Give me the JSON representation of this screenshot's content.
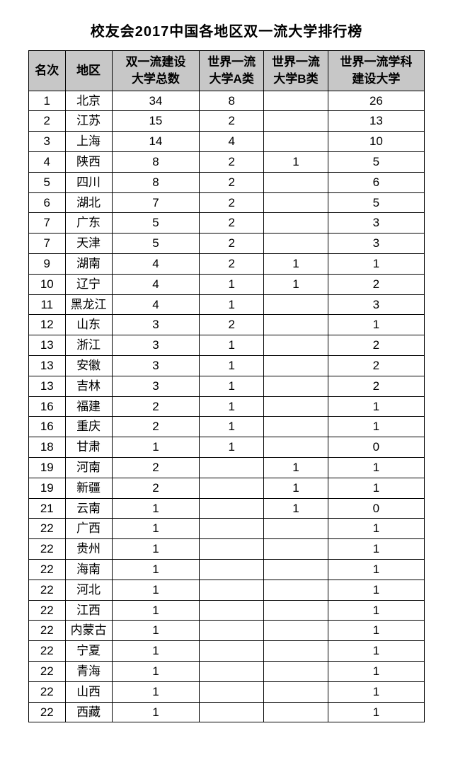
{
  "title": "校友会2017中国各地区双一流大学排行榜",
  "columns": {
    "rank": "名次",
    "region": "地区",
    "total_line1": "双一流建设",
    "total_line2": "大学总数",
    "a_line1": "世界一流",
    "a_line2": "大学A类",
    "b_line1": "世界一流",
    "b_line2": "大学B类",
    "disc_line1": "世界一流学科",
    "disc_line2": "建设大学"
  },
  "rows": [
    {
      "rank": "1",
      "region": "北京",
      "total": "34",
      "a": "8",
      "b": "",
      "disc": "26"
    },
    {
      "rank": "2",
      "region": "江苏",
      "total": "15",
      "a": "2",
      "b": "",
      "disc": "13"
    },
    {
      "rank": "3",
      "region": "上海",
      "total": "14",
      "a": "4",
      "b": "",
      "disc": "10"
    },
    {
      "rank": "4",
      "region": "陕西",
      "total": "8",
      "a": "2",
      "b": "1",
      "disc": "5"
    },
    {
      "rank": "5",
      "region": "四川",
      "total": "8",
      "a": "2",
      "b": "",
      "disc": "6"
    },
    {
      "rank": "6",
      "region": "湖北",
      "total": "7",
      "a": "2",
      "b": "",
      "disc": "5"
    },
    {
      "rank": "7",
      "region": "广东",
      "total": "5",
      "a": "2",
      "b": "",
      "disc": "3"
    },
    {
      "rank": "7",
      "region": "天津",
      "total": "5",
      "a": "2",
      "b": "",
      "disc": "3"
    },
    {
      "rank": "9",
      "region": "湖南",
      "total": "4",
      "a": "2",
      "b": "1",
      "disc": "1"
    },
    {
      "rank": "10",
      "region": "辽宁",
      "total": "4",
      "a": "1",
      "b": "1",
      "disc": "2"
    },
    {
      "rank": "11",
      "region": "黑龙江",
      "total": "4",
      "a": "1",
      "b": "",
      "disc": "3"
    },
    {
      "rank": "12",
      "region": "山东",
      "total": "3",
      "a": "2",
      "b": "",
      "disc": "1"
    },
    {
      "rank": "13",
      "region": "浙江",
      "total": "3",
      "a": "1",
      "b": "",
      "disc": "2"
    },
    {
      "rank": "13",
      "region": "安徽",
      "total": "3",
      "a": "1",
      "b": "",
      "disc": "2"
    },
    {
      "rank": "13",
      "region": "吉林",
      "total": "3",
      "a": "1",
      "b": "",
      "disc": "2"
    },
    {
      "rank": "16",
      "region": "福建",
      "total": "2",
      "a": "1",
      "b": "",
      "disc": "1"
    },
    {
      "rank": "16",
      "region": "重庆",
      "total": "2",
      "a": "1",
      "b": "",
      "disc": "1"
    },
    {
      "rank": "18",
      "region": "甘肃",
      "total": "1",
      "a": "1",
      "b": "",
      "disc": "0"
    },
    {
      "rank": "19",
      "region": "河南",
      "total": "2",
      "a": "",
      "b": "1",
      "disc": "1"
    },
    {
      "rank": "19",
      "region": "新疆",
      "total": "2",
      "a": "",
      "b": "1",
      "disc": "1"
    },
    {
      "rank": "21",
      "region": "云南",
      "total": "1",
      "a": "",
      "b": "1",
      "disc": "0"
    },
    {
      "rank": "22",
      "region": "广西",
      "total": "1",
      "a": "",
      "b": "",
      "disc": "1"
    },
    {
      "rank": "22",
      "region": "贵州",
      "total": "1",
      "a": "",
      "b": "",
      "disc": "1"
    },
    {
      "rank": "22",
      "region": "海南",
      "total": "1",
      "a": "",
      "b": "",
      "disc": "1"
    },
    {
      "rank": "22",
      "region": "河北",
      "total": "1",
      "a": "",
      "b": "",
      "disc": "1"
    },
    {
      "rank": "22",
      "region": "江西",
      "total": "1",
      "a": "",
      "b": "",
      "disc": "1"
    },
    {
      "rank": "22",
      "region": "内蒙古",
      "total": "1",
      "a": "",
      "b": "",
      "disc": "1"
    },
    {
      "rank": "22",
      "region": "宁夏",
      "total": "1",
      "a": "",
      "b": "",
      "disc": "1"
    },
    {
      "rank": "22",
      "region": "青海",
      "total": "1",
      "a": "",
      "b": "",
      "disc": "1"
    },
    {
      "rank": "22",
      "region": "山西",
      "total": "1",
      "a": "",
      "b": "",
      "disc": "1"
    },
    {
      "rank": "22",
      "region": "西藏",
      "total": "1",
      "a": "",
      "b": "",
      "disc": "1"
    }
  ],
  "style": {
    "header_bg": "#c7c7c7",
    "border_color": "#000000",
    "font_size_header": 17,
    "font_size_body": 17,
    "title_font_size": 20
  }
}
